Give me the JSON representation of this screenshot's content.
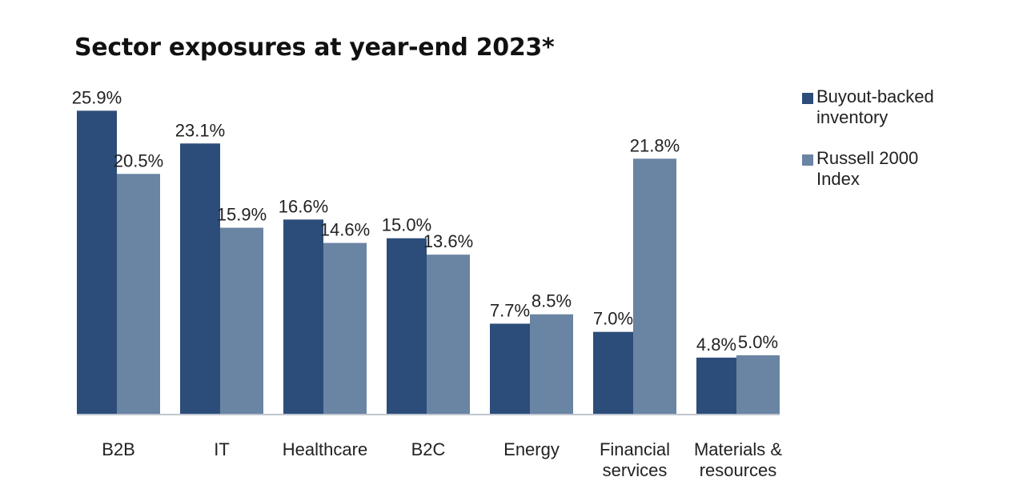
{
  "chart_data": {
    "type": "bar",
    "title": "Sector exposures at year-end 2023*",
    "xlabel": "",
    "ylabel": "",
    "ylim": [
      0,
      27
    ],
    "grid": false,
    "legend": "right",
    "value_suffix": "%",
    "categories": [
      [
        "B2B"
      ],
      [
        "IT"
      ],
      [
        "Healthcare"
      ],
      [
        "B2C"
      ],
      [
        "Energy"
      ],
      [
        "Financial",
        "services"
      ],
      [
        "Materials &",
        "resources"
      ]
    ],
    "series": [
      {
        "name": [
          "Buyout-backed",
          "inventory"
        ],
        "color": "#2c4d7a",
        "values": [
          25.9,
          23.1,
          16.6,
          15.0,
          7.7,
          7.0,
          4.8
        ]
      },
      {
        "name": [
          "Russell 2000",
          "Index"
        ],
        "color": "#6a84a3",
        "values": [
          20.5,
          15.9,
          14.6,
          13.6,
          8.5,
          21.8,
          5.0
        ]
      }
    ]
  }
}
